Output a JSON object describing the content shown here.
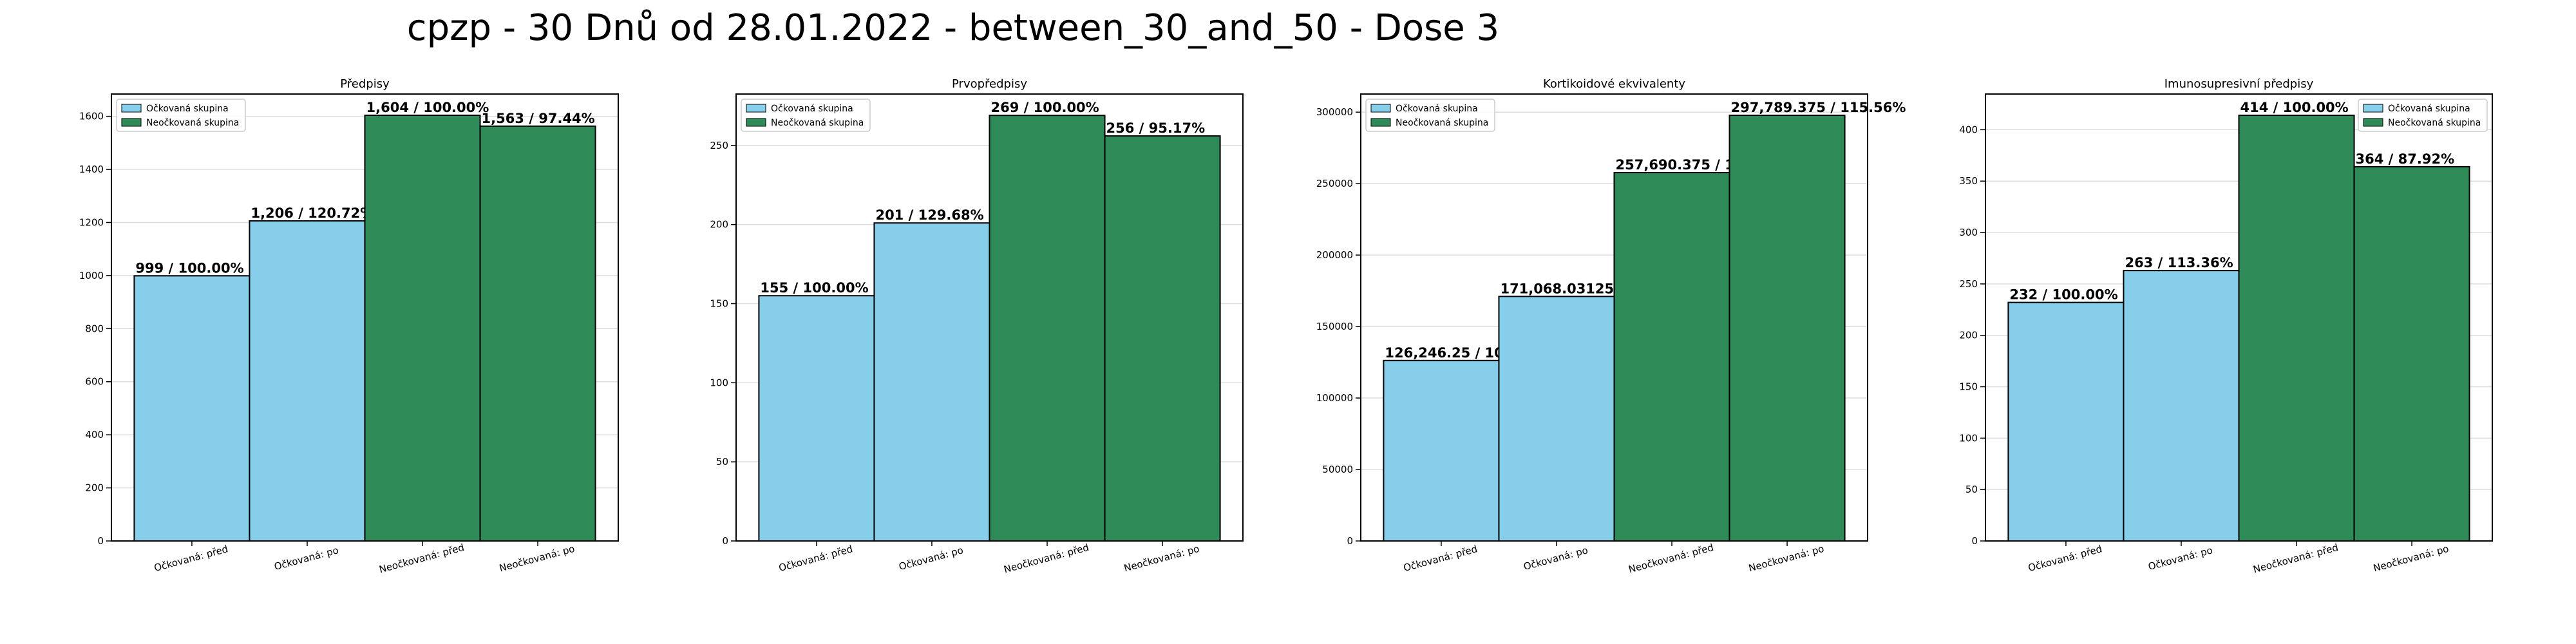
{
  "figure": {
    "suptitle": "cpzp - 30 Dnů od 28.01.2022 - between_30_and_50 - Dose 3"
  },
  "colors": {
    "vaccinated": "#87ceeb",
    "unvaccinated": "#2e8b57",
    "edge": "#000000",
    "grid": "#dddddd"
  },
  "legend": {
    "vaccinated": "Očkovaná skupina",
    "unvaccinated": "Neočkovaná skupina"
  },
  "chart_data": [
    {
      "type": "bar",
      "title": "Předpisy",
      "categories": [
        "Očkovaná: před",
        "Očkovaná: po",
        "Neočkovaná: před",
        "Neočkovaná: po"
      ],
      "values": [
        999,
        1206,
        1604,
        1563
      ],
      "bar_labels": [
        "999 / 100.00%",
        "1,206 / 120.72%",
        "1,604 / 100.00%",
        "1,563 / 97.44%"
      ],
      "groups": [
        "vaccinated",
        "vaccinated",
        "unvaccinated",
        "unvaccinated"
      ],
      "ylim": [
        0,
        1684
      ],
      "yticks": [
        0,
        200,
        400,
        600,
        800,
        1000,
        1200,
        1400,
        1600
      ],
      "ytick_labels": [
        "0",
        "200",
        "400",
        "600",
        "800",
        "1000",
        "1200",
        "1400",
        "1600"
      ],
      "legend_position": "upper-left",
      "grid": true
    },
    {
      "type": "bar",
      "title": "Prvopředpisy",
      "categories": [
        "Očkovaná: před",
        "Očkovaná: po",
        "Neočkovaná: před",
        "Neočkovaná: po"
      ],
      "values": [
        155,
        201,
        269,
        256
      ],
      "bar_labels": [
        "155 / 100.00%",
        "201 / 129.68%",
        "269 / 100.00%",
        "256 / 95.17%"
      ],
      "groups": [
        "vaccinated",
        "vaccinated",
        "unvaccinated",
        "unvaccinated"
      ],
      "ylim": [
        0,
        282.5
      ],
      "yticks": [
        0,
        50,
        100,
        150,
        200,
        250
      ],
      "ytick_labels": [
        "0",
        "50",
        "100",
        "150",
        "200",
        "250"
      ],
      "legend_position": "upper-left",
      "grid": true
    },
    {
      "type": "bar",
      "title": "Kortikoidové ekvivalenty",
      "categories": [
        "Očkovaná: před",
        "Očkovaná: po",
        "Neočkovaná: před",
        "Neočkovaná: po"
      ],
      "values": [
        126246.25,
        171068.03125,
        257690.375,
        297789.375
      ],
      "bar_labels": [
        "126,246.25 / 100.00%",
        "171,068.03125 / 135.50%",
        "257,690.375 / 100.00%",
        "297,789.375 / 115.56%"
      ],
      "groups": [
        "vaccinated",
        "vaccinated",
        "unvaccinated",
        "unvaccinated"
      ],
      "ylim": [
        0,
        312680
      ],
      "yticks": [
        0,
        50000,
        100000,
        150000,
        200000,
        250000,
        300000
      ],
      "ytick_labels": [
        "0",
        "50000",
        "100000",
        "150000",
        "200000",
        "250000",
        "300000"
      ],
      "legend_position": "upper-left",
      "grid": true
    },
    {
      "type": "bar",
      "title": "Imunosupresivní předpisy",
      "categories": [
        "Očkovaná: před",
        "Očkovaná: po",
        "Neočkovaná: před",
        "Neočkovaná: po"
      ],
      "values": [
        232,
        263,
        414,
        364
      ],
      "bar_labels": [
        "232 / 100.00%",
        "263 / 113.36%",
        "414 / 100.00%",
        "364 / 87.92%"
      ],
      "groups": [
        "vaccinated",
        "vaccinated",
        "unvaccinated",
        "unvaccinated"
      ],
      "ylim": [
        0,
        434.7
      ],
      "yticks": [
        0,
        50,
        100,
        150,
        200,
        250,
        300,
        350,
        400
      ],
      "ytick_labels": [
        "0",
        "50",
        "100",
        "150",
        "200",
        "250",
        "300",
        "350",
        "400"
      ],
      "legend_position": "upper-right",
      "grid": true
    }
  ]
}
